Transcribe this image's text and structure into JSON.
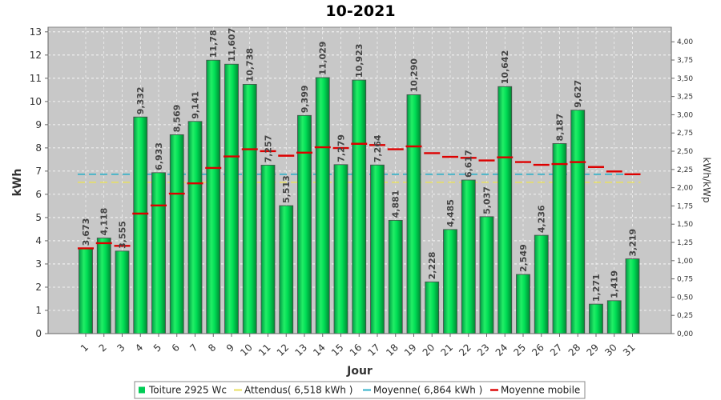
{
  "chart_data": {
    "type": "bar",
    "title": "10-2021",
    "xlabel": "Jour",
    "ylabel": "kWh",
    "y2label": "kWh/kWp",
    "ylim": [
      0,
      13.2
    ],
    "y2lim": [
      0,
      4.2
    ],
    "yticks": [
      0,
      1,
      2,
      3,
      4,
      5,
      6,
      7,
      8,
      9,
      10,
      11,
      12,
      13
    ],
    "y2ticks": [
      "0,00",
      "0,25",
      "0,50",
      "0,75",
      "1,00",
      "1,25",
      "1,50",
      "1,75",
      "2,00",
      "2,25",
      "2,50",
      "2,75",
      "3,00",
      "3,25",
      "3,50",
      "3,75",
      "4,00"
    ],
    "grid": true,
    "legend_position": "bottom",
    "categories": [
      "1",
      "2",
      "3",
      "4",
      "5",
      "6",
      "7",
      "8",
      "9",
      "10",
      "11",
      "12",
      "13",
      "14",
      "15",
      "16",
      "17",
      "18",
      "19",
      "20",
      "21",
      "22",
      "23",
      "24",
      "25",
      "26",
      "27",
      "28",
      "29",
      "30",
      "31"
    ],
    "series": [
      {
        "name": "Toiture 2925 Wc",
        "kind": "bar",
        "color": "#00cc55",
        "values": [
          3.673,
          4.118,
          3.555,
          9.332,
          6.933,
          8.569,
          9.141,
          11.78,
          11.607,
          10.738,
          7.257,
          5.513,
          9.399,
          11.029,
          7.279,
          10.923,
          7.264,
          4.881,
          10.29,
          2.228,
          4.485,
          6.617,
          5.037,
          10.642,
          2.549,
          4.236,
          8.187,
          9.627,
          1.271,
          1.419,
          3.219
        ],
        "labels": [
          "3,673",
          "4,118",
          "3,555",
          "9,332",
          "6,933",
          "8,569",
          "9,141",
          "11,78",
          "11,607",
          "10,738",
          "7,257",
          "5,513",
          "9,399",
          "11,029",
          "7,279",
          "10,923",
          "7,264",
          "4,881",
          "10,290",
          "2,228",
          "4,485",
          "6,617",
          "5,037",
          "10,642",
          "2,549",
          "4,236",
          "8,187",
          "9,627",
          "1,271",
          "1,419",
          "3,219"
        ]
      },
      {
        "name": "Attendus( 6,518 kWh )",
        "kind": "line",
        "color": "#e8e060",
        "value": 6.518
      },
      {
        "name": "Moyenne( 6,864 kWh )",
        "kind": "line",
        "color": "#30b0c8",
        "value": 6.864
      },
      {
        "name": "Moyenne mobile",
        "kind": "marker",
        "color": "#dd0000",
        "values": [
          3.673,
          3.896,
          3.782,
          5.17,
          5.522,
          6.029,
          6.473,
          7.136,
          7.632,
          7.943,
          7.86,
          7.664,
          7.797,
          8.028,
          7.994,
          8.177,
          8.123,
          7.942,
          8.065,
          7.773,
          7.616,
          7.571,
          7.461,
          7.593,
          7.391,
          7.27,
          7.304,
          7.388,
          7.177,
          6.985,
          6.864
        ]
      }
    ]
  }
}
